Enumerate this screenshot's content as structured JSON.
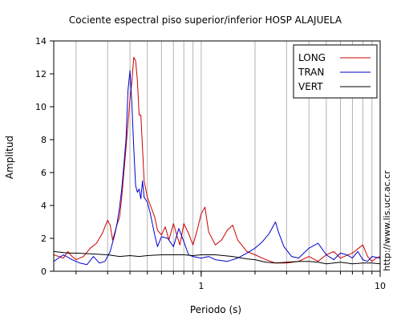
{
  "chart_data": {
    "type": "line",
    "title": "Cociente espectral piso superior/inferior  HOSP ALAJUELA",
    "xlabel": "Periodo (s)",
    "ylabel": "Amplitud",
    "x_scale": "log",
    "xlim": [
      0.15,
      10
    ],
    "ylim": [
      0,
      14
    ],
    "y_ticks": [
      0,
      2,
      4,
      6,
      8,
      10,
      12,
      14
    ],
    "y_tick_labels": [
      "0",
      "2",
      "4",
      "6",
      "8",
      "10",
      "12",
      "14"
    ],
    "x_ticks": [
      1,
      10
    ],
    "x_tick_labels": [
      "1",
      "10"
    ],
    "grid": {
      "x": "log-minor",
      "y": false
    },
    "legend_position": "top-right",
    "side_text": "http://www.lis.ucr.ac.cr",
    "series": [
      {
        "name": "LONG",
        "color": "#cc0000",
        "points": [
          [
            0.15,
            1.0
          ],
          [
            0.17,
            0.8
          ],
          [
            0.18,
            1.2
          ],
          [
            0.19,
            0.9
          ],
          [
            0.2,
            0.7
          ],
          [
            0.22,
            0.9
          ],
          [
            0.24,
            1.4
          ],
          [
            0.26,
            1.7
          ],
          [
            0.28,
            2.3
          ],
          [
            0.3,
            3.1
          ],
          [
            0.31,
            2.8
          ],
          [
            0.32,
            1.9
          ],
          [
            0.33,
            2.4
          ],
          [
            0.34,
            2.9
          ],
          [
            0.35,
            3.3
          ],
          [
            0.36,
            4.5
          ],
          [
            0.37,
            6.0
          ],
          [
            0.38,
            7.5
          ],
          [
            0.39,
            9.0
          ],
          [
            0.4,
            10.5
          ],
          [
            0.41,
            11.5
          ],
          [
            0.42,
            13.0
          ],
          [
            0.43,
            12.8
          ],
          [
            0.44,
            11.6
          ],
          [
            0.45,
            9.5
          ],
          [
            0.46,
            9.5
          ],
          [
            0.47,
            7.5
          ],
          [
            0.48,
            5.5
          ],
          [
            0.5,
            4.5
          ],
          [
            0.52,
            4.0
          ],
          [
            0.55,
            3.3
          ],
          [
            0.57,
            2.5
          ],
          [
            0.6,
            2.2
          ],
          [
            0.63,
            2.7
          ],
          [
            0.66,
            1.9
          ],
          [
            0.7,
            2.9
          ],
          [
            0.73,
            2.2
          ],
          [
            0.76,
            1.6
          ],
          [
            0.8,
            2.9
          ],
          [
            0.85,
            2.3
          ],
          [
            0.9,
            1.6
          ],
          [
            0.95,
            2.5
          ],
          [
            1.0,
            3.5
          ],
          [
            1.05,
            3.9
          ],
          [
            1.1,
            2.4
          ],
          [
            1.2,
            1.6
          ],
          [
            1.3,
            1.9
          ],
          [
            1.4,
            2.5
          ],
          [
            1.5,
            2.8
          ],
          [
            1.6,
            1.9
          ],
          [
            1.8,
            1.2
          ],
          [
            2.0,
            1.0
          ],
          [
            2.3,
            0.7
          ],
          [
            2.6,
            0.5
          ],
          [
            3.0,
            0.5
          ],
          [
            3.5,
            0.6
          ],
          [
            4.0,
            0.9
          ],
          [
            4.5,
            0.6
          ],
          [
            5.0,
            1.0
          ],
          [
            5.5,
            1.2
          ],
          [
            6.0,
            0.8
          ],
          [
            7.0,
            1.1
          ],
          [
            8.0,
            1.6
          ],
          [
            8.5,
            0.9
          ],
          [
            9.0,
            0.6
          ],
          [
            9.5,
            0.8
          ],
          [
            10.0,
            0.9
          ]
        ]
      },
      {
        "name": "TRAN",
        "color": "#0000cc",
        "points": [
          [
            0.15,
            0.6
          ],
          [
            0.17,
            1.0
          ],
          [
            0.19,
            0.7
          ],
          [
            0.21,
            0.5
          ],
          [
            0.23,
            0.4
          ],
          [
            0.25,
            0.9
          ],
          [
            0.27,
            0.5
          ],
          [
            0.29,
            0.6
          ],
          [
            0.31,
            1.2
          ],
          [
            0.33,
            2.3
          ],
          [
            0.34,
            3.0
          ],
          [
            0.35,
            3.9
          ],
          [
            0.36,
            5.0
          ],
          [
            0.37,
            6.5
          ],
          [
            0.38,
            8.0
          ],
          [
            0.39,
            11.0
          ],
          [
            0.4,
            12.2
          ],
          [
            0.41,
            10.2
          ],
          [
            0.42,
            7.5
          ],
          [
            0.43,
            5.2
          ],
          [
            0.44,
            4.8
          ],
          [
            0.45,
            5.0
          ],
          [
            0.46,
            4.4
          ],
          [
            0.47,
            5.5
          ],
          [
            0.48,
            4.5
          ],
          [
            0.5,
            4.2
          ],
          [
            0.52,
            3.5
          ],
          [
            0.55,
            2.2
          ],
          [
            0.57,
            1.5
          ],
          [
            0.6,
            2.1
          ],
          [
            0.65,
            2.0
          ],
          [
            0.7,
            1.5
          ],
          [
            0.75,
            2.6
          ],
          [
            0.8,
            1.8
          ],
          [
            0.85,
            1.0
          ],
          [
            0.9,
            0.9
          ],
          [
            1.0,
            0.8
          ],
          [
            1.1,
            0.9
          ],
          [
            1.2,
            0.7
          ],
          [
            1.4,
            0.6
          ],
          [
            1.6,
            0.8
          ],
          [
            1.8,
            1.1
          ],
          [
            2.0,
            1.4
          ],
          [
            2.2,
            1.8
          ],
          [
            2.4,
            2.3
          ],
          [
            2.6,
            3.0
          ],
          [
            2.7,
            2.4
          ],
          [
            2.9,
            1.5
          ],
          [
            3.2,
            0.9
          ],
          [
            3.5,
            0.8
          ],
          [
            4.0,
            1.4
          ],
          [
            4.5,
            1.7
          ],
          [
            5.0,
            1.0
          ],
          [
            5.5,
            0.7
          ],
          [
            6.0,
            1.1
          ],
          [
            6.5,
            1.0
          ],
          [
            7.0,
            0.8
          ],
          [
            7.5,
            1.2
          ],
          [
            8.0,
            0.7
          ],
          [
            8.5,
            0.6
          ],
          [
            9.0,
            0.9
          ],
          [
            10.0,
            0.8
          ]
        ]
      },
      {
        "name": "VERT",
        "color": "#000000",
        "points": [
          [
            0.15,
            1.2
          ],
          [
            0.18,
            1.1
          ],
          [
            0.2,
            1.1
          ],
          [
            0.25,
            1.05
          ],
          [
            0.3,
            1.0
          ],
          [
            0.35,
            0.9
          ],
          [
            0.4,
            0.95
          ],
          [
            0.45,
            0.9
          ],
          [
            0.5,
            0.95
          ],
          [
            0.6,
            1.0
          ],
          [
            0.7,
            1.0
          ],
          [
            0.8,
            1.0
          ],
          [
            0.9,
            0.95
          ],
          [
            1.0,
            1.0
          ],
          [
            1.2,
            1.0
          ],
          [
            1.5,
            0.9
          ],
          [
            1.8,
            0.75
          ],
          [
            2.0,
            0.7
          ],
          [
            2.3,
            0.55
          ],
          [
            2.6,
            0.5
          ],
          [
            3.0,
            0.55
          ],
          [
            3.5,
            0.6
          ],
          [
            4.0,
            0.6
          ],
          [
            4.5,
            0.55
          ],
          [
            5.0,
            0.45
          ],
          [
            5.5,
            0.5
          ],
          [
            6.0,
            0.55
          ],
          [
            6.5,
            0.5
          ],
          [
            7.0,
            0.45
          ],
          [
            8.0,
            0.5
          ],
          [
            9.0,
            0.5
          ],
          [
            10.0,
            0.45
          ]
        ]
      }
    ]
  }
}
